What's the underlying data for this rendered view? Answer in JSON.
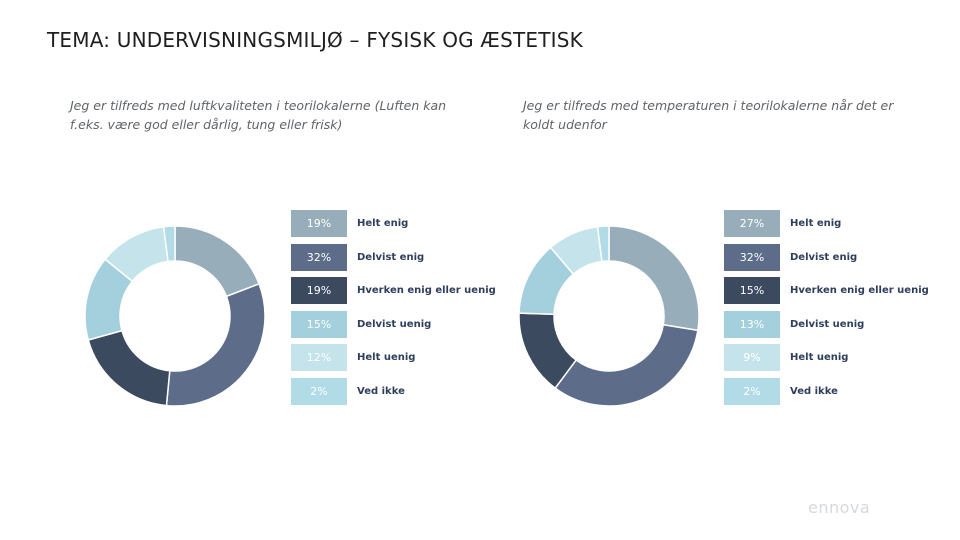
{
  "header": {
    "title": "TEMA: UNDERVISNINGSMILJØ – FYSISK OG ÆSTETISK"
  },
  "logo": {
    "text": "ennova"
  },
  "chart_data": [
    {
      "type": "pie",
      "variant": "donut",
      "title": "Jeg er tilfreds med luftkvaliteten i teorilokalerne (Luften kan f.eks. være god eller dårlig, tung eller frisk)",
      "categories": [
        "Helt enig",
        "Delvist enig",
        "Hverken enig eller uenig",
        "Delvist uenig",
        "Helt uenig",
        "Ved ikke"
      ],
      "values": [
        19,
        32,
        19,
        15,
        12,
        2
      ],
      "labels": [
        "19%",
        "32%",
        "19%",
        "15%",
        "12%",
        "2%"
      ],
      "colors": [
        "#97aeba",
        "#5d6d89",
        "#3c4a60",
        "#a4cfdc",
        "#c4e3ea",
        "#b1dce7"
      ],
      "legend_position": "right"
    },
    {
      "type": "pie",
      "variant": "donut",
      "title": "Jeg er tilfreds med temperaturen i teorilokalerne når det er koldt udenfor",
      "categories": [
        "Helt enig",
        "Delvist enig",
        "Hverken enig eller uenig",
        "Delvist uenig",
        "Helt uenig",
        "Ved ikke"
      ],
      "values": [
        27,
        32,
        15,
        13,
        9,
        2
      ],
      "labels": [
        "27%",
        "32%",
        "15%",
        "13%",
        "9%",
        "2%"
      ],
      "colors": [
        "#97aeba",
        "#5d6d89",
        "#3c4a60",
        "#a4cfdc",
        "#c4e3ea",
        "#b1dce7"
      ],
      "legend_position": "right"
    }
  ]
}
